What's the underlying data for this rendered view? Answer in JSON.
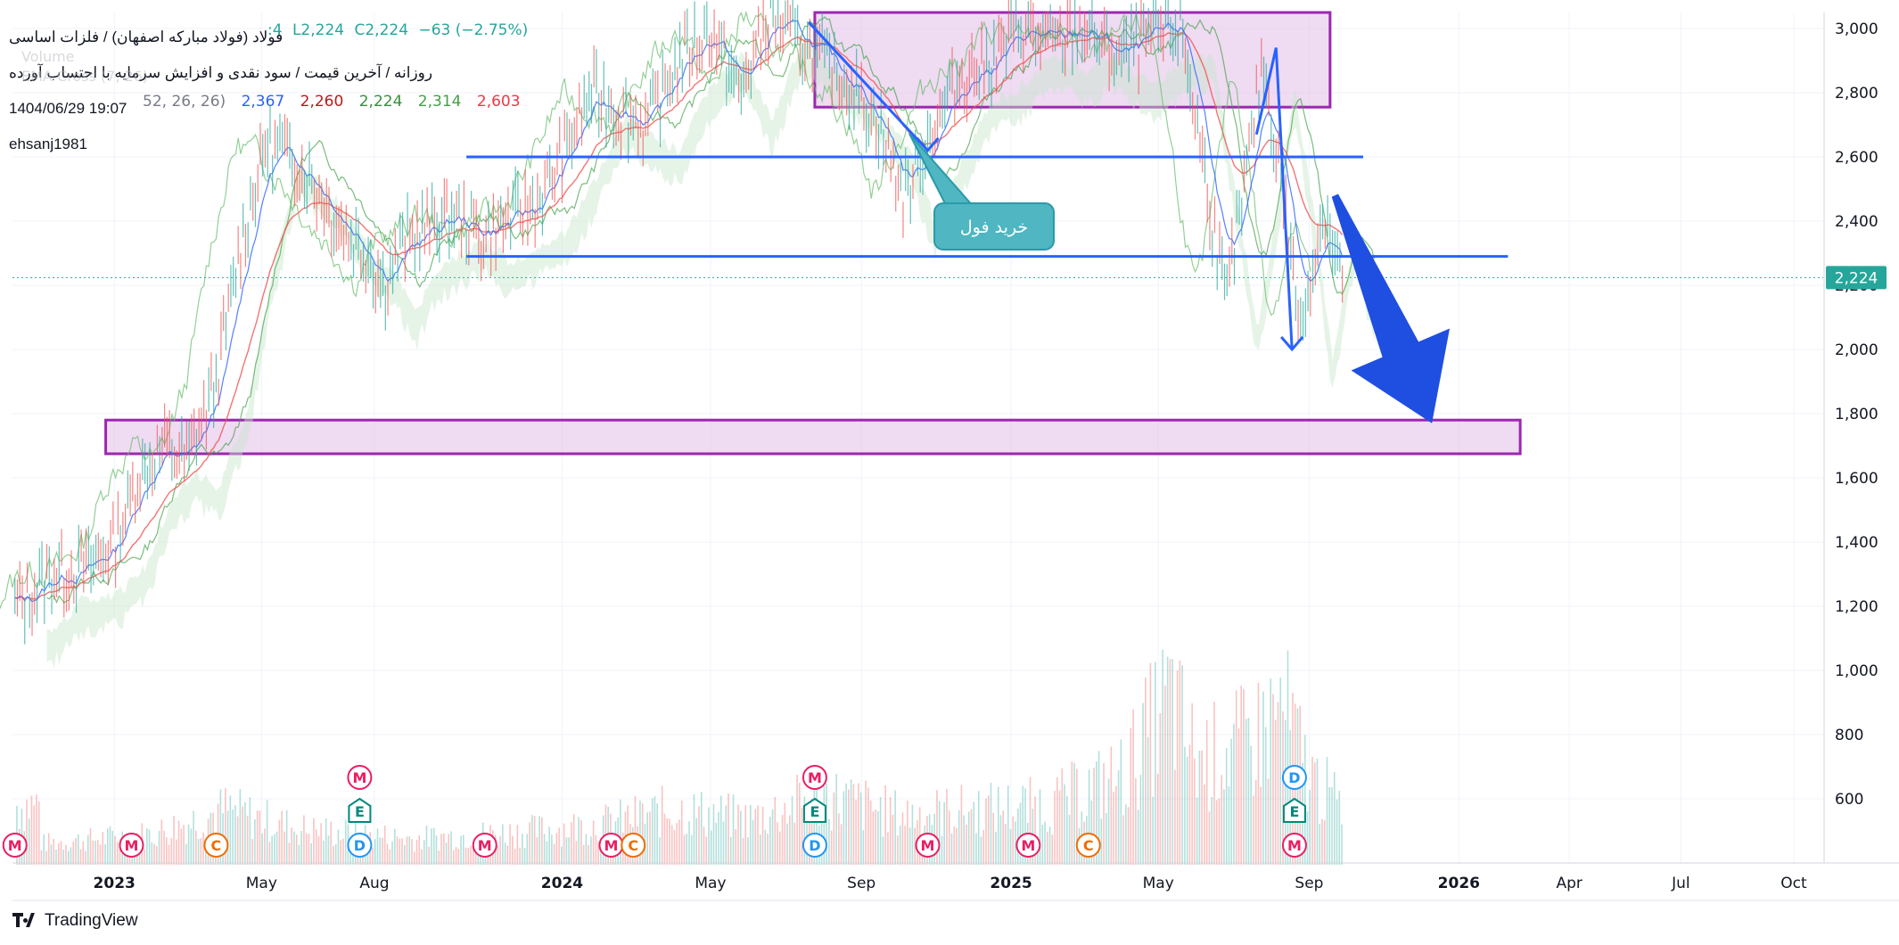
{
  "header": {
    "symbol": "فولاد (فولاد مبارکه اصفهان) / فلزات اساسی",
    "chart_subtitle": "روزانه / آخرین قیمت / سود نقدی و افزایش سرمایه با احتساب آورده",
    "datetime": "1404/06/29 19:07",
    "author": "ehsanj1981",
    "volume_label": "Volume",
    "ema_label": "EMA Cross (7, 26)",
    "ohlc": {
      "open_prefix": ":4",
      "low": "L2,224",
      "close": "C2,224",
      "change": "−63 (−2.75%)"
    },
    "ichimoku": {
      "params": "52, 26, 26)",
      "values": [
        "2,367",
        "2,260",
        "2,224",
        "2,314",
        "2,603"
      ],
      "colors": [
        "#2962ff",
        "#b71c1c",
        "#388e3c",
        "#43a047",
        "#f23645"
      ]
    }
  },
  "price_badge": {
    "value": "2,224",
    "color": "#26a69a"
  },
  "annotation": {
    "text": "خرید فول"
  },
  "footer": {
    "brand": "TradingView"
  },
  "colors": {
    "up": "#26a69a",
    "down": "#ef5350",
    "axis_text": "#131722",
    "grid": "#f0f3fa",
    "hline": "#2962ff",
    "box_stroke": "#9c27b0",
    "box_fill": "#e1bee7",
    "arrow": "#1e4fe0",
    "cloud_green": "#c8e6c9",
    "cloud_red": "#ffcdd2"
  },
  "chart_data": {
    "type": "line",
    "title": "",
    "y_axis": {
      "min": 400,
      "max": 3050,
      "ticks": [
        600,
        800,
        1000,
        1200,
        1400,
        1600,
        1800,
        2000,
        2200,
        2400,
        2600,
        2800,
        3000
      ],
      "tick_labels": [
        "600",
        "800",
        "1,000",
        "1,200",
        "1,400",
        "1,600",
        "1,800",
        "2,000",
        "2,200",
        "2,400",
        "2,600",
        "2,800",
        "3,000"
      ]
    },
    "x_axis": {
      "start": "2022-10-10",
      "end": "2026-10-25",
      "ticks": [
        {
          "date": "2023-01-01",
          "label": "2023",
          "bold": true
        },
        {
          "date": "2023-05-01",
          "label": "May"
        },
        {
          "date": "2023-08-01",
          "label": "Aug"
        },
        {
          "date": "2024-01-01",
          "label": "2024",
          "bold": true
        },
        {
          "date": "2024-05-01",
          "label": "May"
        },
        {
          "date": "2024-09-01",
          "label": "Sep"
        },
        {
          "date": "2025-01-01",
          "label": "2025",
          "bold": true
        },
        {
          "date": "2025-05-01",
          "label": "May"
        },
        {
          "date": "2025-09-01",
          "label": "Sep"
        },
        {
          "date": "2026-01-01",
          "label": "2026",
          "bold": true
        },
        {
          "date": "2026-04-01",
          "label": "Apr"
        },
        {
          "date": "2026-07-01",
          "label": "Jul"
        },
        {
          "date": "2026-10-01",
          "label": "Oct"
        }
      ]
    },
    "last_price": 2224,
    "price_series": [
      [
        "2022-10-12",
        1190
      ],
      [
        "2022-11-10",
        1300
      ],
      [
        "2022-12-10",
        1320
      ],
      [
        "2023-01-01",
        1400
      ],
      [
        "2023-01-20",
        1600
      ],
      [
        "2023-02-10",
        1700
      ],
      [
        "2023-03-01",
        1650
      ],
      [
        "2023-03-25",
        1900
      ],
      [
        "2023-04-15",
        2350
      ],
      [
        "2023-05-05",
        2650
      ],
      [
        "2023-05-25",
        2600
      ],
      [
        "2023-06-15",
        2500
      ],
      [
        "2023-07-05",
        2380
      ],
      [
        "2023-07-25",
        2300
      ],
      [
        "2023-08-10",
        2200
      ],
      [
        "2023-08-25",
        2330
      ],
      [
        "2023-09-15",
        2380
      ],
      [
        "2023-10-05",
        2420
      ],
      [
        "2023-10-25",
        2350
      ],
      [
        "2023-11-15",
        2400
      ],
      [
        "2023-12-10",
        2450
      ],
      [
        "2024-01-01",
        2600
      ],
      [
        "2024-01-25",
        2800
      ],
      [
        "2024-02-15",
        2750
      ],
      [
        "2024-03-10",
        2700
      ],
      [
        "2024-04-05",
        2900
      ],
      [
        "2024-05-01",
        3000
      ],
      [
        "2024-05-25",
        2800
      ],
      [
        "2024-06-20",
        3050
      ],
      [
        "2024-07-15",
        2950
      ],
      [
        "2024-08-05",
        2880
      ],
      [
        "2024-08-25",
        2820
      ],
      [
        "2024-09-15",
        2700
      ],
      [
        "2024-10-05",
        2480
      ],
      [
        "2024-10-25",
        2650
      ],
      [
        "2024-11-20",
        2850
      ],
      [
        "2024-12-15",
        2900
      ],
      [
        "2025-01-10",
        3000
      ],
      [
        "2025-02-05",
        2950
      ],
      [
        "2025-03-01",
        3000
      ],
      [
        "2025-04-01",
        2900
      ],
      [
        "2025-04-25",
        2980
      ],
      [
        "2025-05-20",
        3000
      ],
      [
        "2025-06-10",
        2500
      ],
      [
        "2025-06-25",
        2150
      ],
      [
        "2025-07-10",
        2500
      ],
      [
        "2025-07-25",
        2900
      ],
      [
        "2025-08-10",
        2500
      ],
      [
        "2025-08-25",
        2050
      ],
      [
        "2025-09-05",
        2300
      ],
      [
        "2025-09-15",
        2450
      ],
      [
        "2025-09-22",
        2287
      ],
      [
        "2025-09-28",
        2224
      ]
    ],
    "volume_series": [
      [
        "2022-11-01",
        480
      ],
      [
        "2023-02-01",
        520
      ],
      [
        "2023-04-01",
        620
      ],
      [
        "2023-06-01",
        540
      ],
      [
        "2023-09-01",
        500
      ],
      [
        "2023-12-01",
        530
      ],
      [
        "2024-02-01",
        560
      ],
      [
        "2024-04-01",
        620
      ],
      [
        "2024-06-01",
        580
      ],
      [
        "2024-08-01",
        680
      ],
      [
        "2024-10-01",
        600
      ],
      [
        "2024-12-01",
        620
      ],
      [
        "2025-02-01",
        640
      ],
      [
        "2025-04-01",
        760
      ],
      [
        "2025-05-10",
        1080
      ],
      [
        "2025-06-01",
        820
      ],
      [
        "2025-07-15",
        900
      ],
      [
        "2025-08-10",
        1040
      ],
      [
        "2025-09-01",
        760
      ],
      [
        "2025-09-25",
        640
      ]
    ],
    "horizontal_lines": [
      {
        "y": 2600,
        "from": "2023-10-15",
        "to": "2025-10-15"
      },
      {
        "y": 2290,
        "from": "2023-10-15",
        "to": "2026-02-10"
      }
    ],
    "zones": [
      {
        "y_low": 2755,
        "y_high": 3050,
        "from": "2024-07-25",
        "to": "2025-09-18"
      },
      {
        "y_low": 1675,
        "y_high": 1780,
        "from": "2022-12-25",
        "to": "2026-02-20"
      }
    ],
    "projection_arrow": {
      "from": [
        "2025-09-22",
        2480
      ],
      "to": [
        "2025-12-10",
        1770
      ]
    },
    "small_arrows": [
      {
        "points": [
          [
            "2025-07-20",
            2670
          ],
          [
            "2025-08-05",
            2940
          ],
          [
            "2025-08-18",
            2000
          ]
        ]
      },
      {
        "points": [
          [
            "2024-07-20",
            3020
          ],
          [
            "2024-10-25",
            2620
          ]
        ]
      }
    ],
    "event_markers": [
      {
        "date": "2022-10-12",
        "letter": "M",
        "row": 1
      },
      {
        "date": "2023-01-15",
        "letter": "M",
        "row": 1
      },
      {
        "date": "2023-03-25",
        "letter": "C",
        "row": 1
      },
      {
        "date": "2023-07-20",
        "letter": "M",
        "row": 3
      },
      {
        "date": "2023-07-20",
        "letter": "E",
        "row": 2
      },
      {
        "date": "2023-07-20",
        "letter": "D",
        "row": 1
      },
      {
        "date": "2023-10-30",
        "letter": "M",
        "row": 1
      },
      {
        "date": "2024-02-10",
        "letter": "M",
        "row": 1
      },
      {
        "date": "2024-02-28",
        "letter": "C",
        "row": 1
      },
      {
        "date": "2024-07-25",
        "letter": "M",
        "row": 3
      },
      {
        "date": "2024-07-25",
        "letter": "E",
        "row": 2
      },
      {
        "date": "2024-07-25",
        "letter": "D",
        "row": 1
      },
      {
        "date": "2024-10-25",
        "letter": "M",
        "row": 1
      },
      {
        "date": "2025-01-15",
        "letter": "M",
        "row": 1
      },
      {
        "date": "2025-03-05",
        "letter": "C",
        "row": 1
      },
      {
        "date": "2025-08-20",
        "letter": "D",
        "row": 3
      },
      {
        "date": "2025-08-20",
        "letter": "E",
        "row": 2
      },
      {
        "date": "2025-08-20",
        "letter": "M",
        "row": 1
      }
    ]
  }
}
